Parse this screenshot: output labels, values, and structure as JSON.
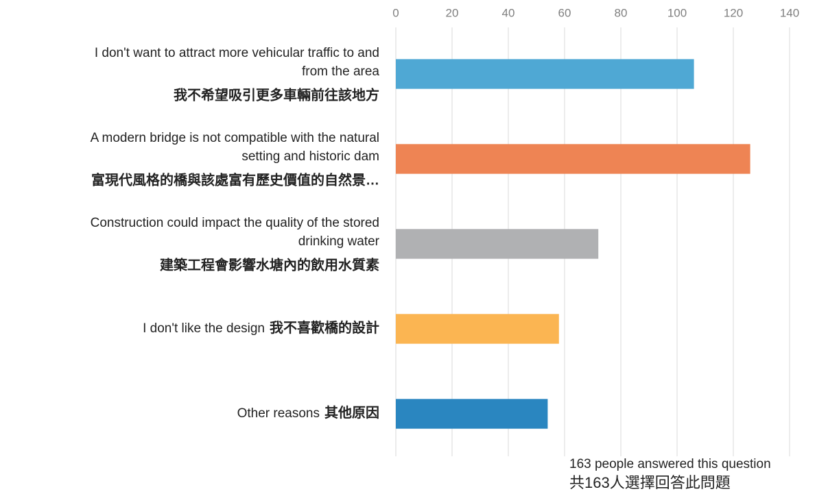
{
  "chart_data": {
    "type": "barh",
    "categories": [
      {
        "en": [
          "I don't want to attract more vehicular traffic to and",
          "from the area"
        ],
        "zh": "我不希望吸引更多車輛前往該地方"
      },
      {
        "en": [
          "A modern bridge is not compatible with the natural",
          "setting and historic dam"
        ],
        "zh": "富現代風格的橋與該處富有歷史價值的自然景…"
      },
      {
        "en": [
          "Construction could impact the quality of the stored",
          "drinking water"
        ],
        "zh": "建築工程會影響水塘內的飲用水質素"
      },
      {
        "en": [
          "I don't like the design"
        ],
        "zh": "我不喜歡橋的設計",
        "inline": true
      },
      {
        "en": [
          "Other reasons"
        ],
        "zh": "其他原因",
        "inline": true
      }
    ],
    "values": [
      106,
      126,
      72,
      58,
      54
    ],
    "colors": [
      "#4fa8d4",
      "#ee8454",
      "#b0b1b3",
      "#fbb552",
      "#2a86c0"
    ],
    "xlim": [
      0,
      140
    ],
    "xticks": [
      0,
      20,
      40,
      60,
      80,
      100,
      120,
      140
    ],
    "grid": true,
    "annotations": [
      "163 people answered this question",
      "共163人選擇回答此問題"
    ]
  }
}
